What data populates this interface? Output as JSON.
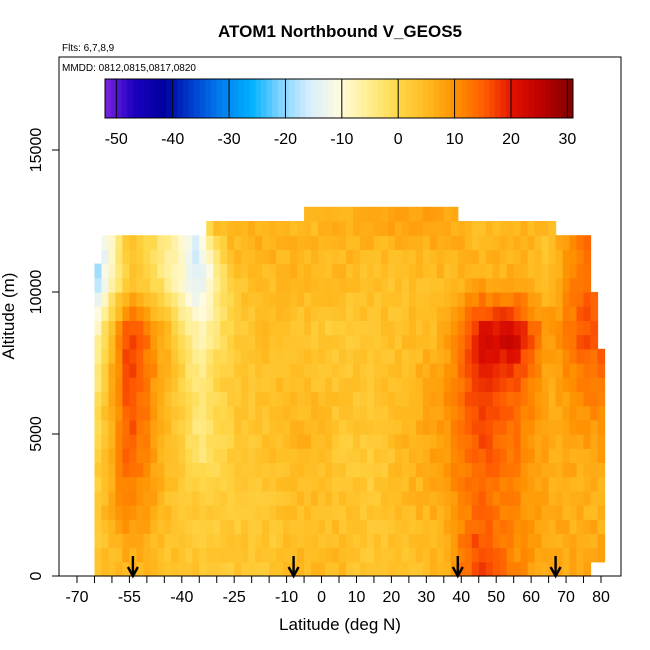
{
  "chart_data": {
    "type": "heatmap",
    "title": "ATOM1 Northbound V_GEOS5",
    "note_flights": "Flts: 6,7,8,9",
    "note_dates": "MMDD: 0812,0815,0817,0820",
    "xlabel": "Latitude (deg N)",
    "ylabel": "Altitude (m)",
    "xlim": [
      -70,
      80
    ],
    "ylim": [
      0,
      17500
    ],
    "x_tick_labels": [
      "-70",
      "-55",
      "-40",
      "-25",
      "-10",
      "0",
      "10",
      "20",
      "30",
      "40",
      "50",
      "60",
      "70",
      "80"
    ],
    "x_tick_values": [
      -70,
      -55,
      -40,
      -25,
      -10,
      0,
      10,
      20,
      30,
      40,
      50,
      60,
      70,
      80
    ],
    "x_minor_ticks": [
      -65,
      -60,
      -50,
      -45,
      -35,
      -30,
      -20,
      -15,
      -5,
      5,
      15,
      25,
      35,
      45,
      55,
      65,
      75
    ],
    "y_tick_labels": [
      "0",
      "5000",
      "10000",
      "15000"
    ],
    "y_tick_values": [
      0,
      5000,
      10000,
      15000
    ],
    "colorbar": {
      "min": -52,
      "max": 31,
      "tick_labels": [
        "-50",
        "-40",
        "-30",
        "-20",
        "-10",
        "0",
        "10",
        "20",
        "30"
      ],
      "tick_values": [
        -50,
        -40,
        -30,
        -20,
        -10,
        0,
        10,
        20,
        30
      ],
      "colors": [
        "#7a24e0",
        "#1a00c0",
        "#0000a0",
        "#0040d0",
        "#0080f0",
        "#00b0ff",
        "#80d4ff",
        "#d8eefc",
        "#fffbe0",
        "#ffee90",
        "#ffd84a",
        "#ffbb20",
        "#ff9000",
        "#ff5a00",
        "#e01000",
        "#b80000",
        "#800000"
      ]
    },
    "arrow_latitudes": [
      -54,
      -8,
      39,
      67
    ],
    "field_samples": {
      "latitudes": [
        -65,
        -55,
        -45,
        -35,
        -25,
        -15,
        -5,
        5,
        15,
        25,
        35,
        45,
        55,
        65,
        75
      ],
      "altitudes": [
        500,
        2500,
        4500,
        6500,
        8500,
        10500,
        12500
      ],
      "values": [
        [
          3,
          6,
          4,
          3,
          3,
          3,
          5,
          5,
          3,
          4,
          6,
          18,
          11,
          7,
          8
        ],
        [
          2,
          12,
          5,
          2,
          3,
          3,
          5,
          4,
          3,
          5,
          7,
          14,
          11,
          7,
          6
        ],
        [
          -1,
          16,
          6,
          -4,
          2,
          4,
          6,
          3,
          2,
          6,
          9,
          16,
          13,
          7,
          8
        ],
        [
          -4,
          18,
          6,
          -3,
          3,
          4,
          5,
          4,
          3,
          6,
          9,
          18,
          15,
          6,
          12
        ],
        [
          -9,
          19,
          7,
          -8,
          2,
          5,
          3,
          2,
          4,
          4,
          6,
          22,
          24,
          9,
          16
        ],
        [
          -20,
          4,
          -4,
          -16,
          3,
          5,
          6,
          5,
          4,
          4,
          5,
          6,
          6,
          4,
          14
        ],
        [
          null,
          null,
          null,
          null,
          7,
          7,
          5,
          6,
          7,
          8,
          8,
          5,
          6,
          null,
          null
        ]
      ]
    }
  }
}
